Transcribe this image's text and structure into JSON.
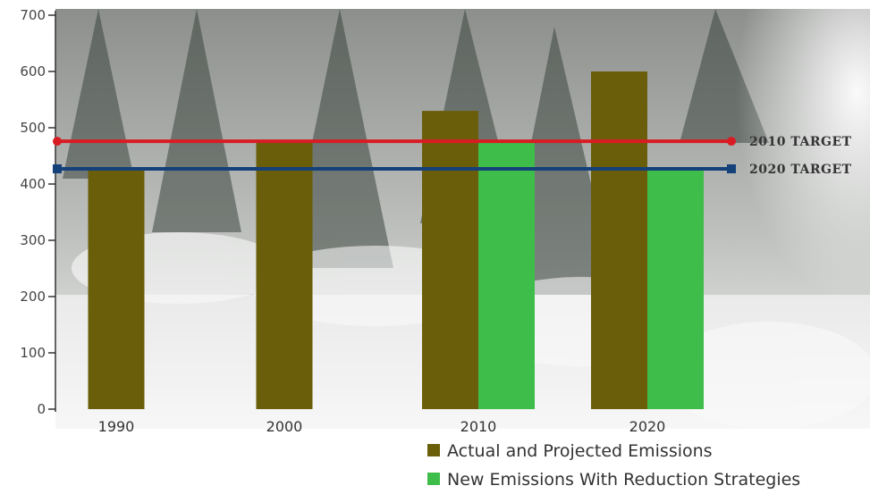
{
  "chart_data": {
    "type": "bar",
    "title": "",
    "xlabel": "",
    "ylabel": "",
    "categories": [
      "1990",
      "2000",
      "2010",
      "2020"
    ],
    "ylim": [
      0,
      700
    ],
    "yticks": [
      0,
      100,
      200,
      300,
      400,
      500,
      600,
      700
    ],
    "series": [
      {
        "name": "Actual and Projected Emissions",
        "color": "#6b5e0a",
        "values": [
          427,
          476,
          530,
          600
        ]
      },
      {
        "name": "New Emissions With Reduction Strategies",
        "color": "#3fbd4a",
        "values": [
          null,
          null,
          476,
          427
        ]
      }
    ],
    "reference_lines": [
      {
        "label": "2010 TARGET",
        "value": 476,
        "color": "#d91c24"
      },
      {
        "label": "2020 TARGET",
        "value": 427,
        "color": "#14417a"
      }
    ],
    "grid": false,
    "legend_position": "bottom-right",
    "background": "snowy forest photograph"
  }
}
